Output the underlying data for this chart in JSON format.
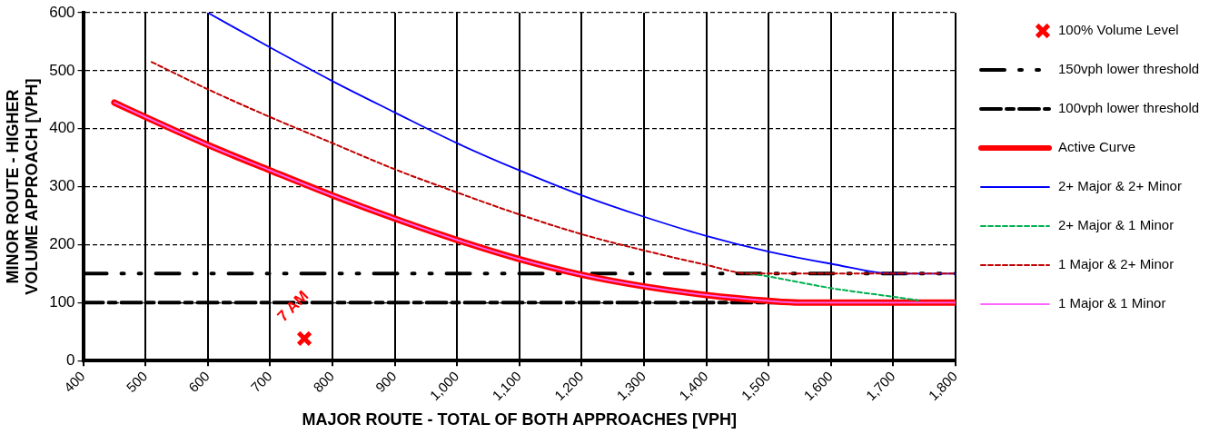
{
  "chart_data": {
    "type": "line",
    "xlabel": "MAJOR ROUTE - TOTAL OF BOTH APPROACHES [VPH]",
    "ylabel": "MINOR ROUTE - HIGHER VOLUME APPROACH [VPH]",
    "xlim": [
      400,
      1800
    ],
    "xticks": [
      400,
      500,
      600,
      700,
      800,
      900,
      {
        "value": 1000,
        "label": "1,000"
      },
      {
        "value": 1100,
        "label": "1,100"
      },
      {
        "value": 1200,
        "label": "1,200"
      },
      {
        "value": 1300,
        "label": "1,300"
      },
      {
        "value": 1400,
        "label": "1,400"
      },
      {
        "value": 1500,
        "label": "1,500"
      },
      {
        "value": 1600,
        "label": "1,600"
      },
      {
        "value": 1700,
        "label": "1,700"
      },
      {
        "value": 1800,
        "label": "1,800"
      }
    ],
    "ylim": [
      0,
      600
    ],
    "yticks": [
      0,
      100,
      200,
      300,
      400,
      500,
      600
    ],
    "grid": true,
    "legend": "right",
    "series": [
      {
        "name": "100% Volume Level",
        "type": "scatter",
        "marker": "cross",
        "color": "#ff0000",
        "x": [
          755
        ],
        "values": [
          38
        ]
      },
      {
        "name": "Active Curve",
        "color": "#ff0000",
        "x": [
          450,
          500,
          600,
          700,
          800,
          900,
          1000,
          1100,
          1200,
          1300,
          1400,
          1500,
          1550,
          1800
        ],
        "values": [
          445,
          420,
          372,
          328,
          285,
          245,
          208,
          175,
          148,
          128,
          113,
          103,
          100,
          100
        ]
      },
      {
        "name": "2+ Major & 2+ Minor",
        "color": "#0000ff",
        "x": [
          600,
          700,
          800,
          900,
          1000,
          1100,
          1200,
          1300,
          1400,
          1500,
          1600,
          1700,
          1800
        ],
        "values": [
          600,
          540,
          482,
          428,
          375,
          328,
          285,
          248,
          215,
          188,
          167,
          150,
          150
        ]
      },
      {
        "name": "2+ Major & 1 Minor",
        "color": "#00b050",
        "line_style": "dashed",
        "x": [
          1470,
          1500,
          1600,
          1700,
          1740
        ],
        "values": [
          150,
          145,
          125,
          110,
          104
        ]
      },
      {
        "name": "1 Major & 2+ Minor",
        "color": "#c00000",
        "line_style": "dashed",
        "x": [
          510,
          600,
          700,
          800,
          900,
          1000,
          1100,
          1200,
          1300,
          1400,
          1470,
          1800
        ],
        "values": [
          515,
          468,
          420,
          375,
          330,
          290,
          252,
          218,
          190,
          165,
          150,
          150
        ]
      },
      {
        "name": "1 Major & 1 Minor",
        "color": "#ff66ff",
        "x": [
          450,
          500,
          600,
          700,
          800,
          900,
          1000,
          1100,
          1200,
          1300,
          1400,
          1500,
          1550,
          1800
        ],
        "values": [
          445,
          420,
          372,
          328,
          285,
          245,
          208,
          175,
          148,
          128,
          113,
          103,
          100,
          100
        ]
      }
    ],
    "ref_lines": [
      {
        "axis": "y",
        "value": 150,
        "label": "150vph lower threshold",
        "line_style": "dashdotdot"
      },
      {
        "axis": "y",
        "value": 100,
        "label": "100vph lower threshold",
        "line_style": "dashdot"
      }
    ],
    "annotations": [
      {
        "text": "7 AM",
        "x": 755,
        "y": 38
      }
    ]
  }
}
